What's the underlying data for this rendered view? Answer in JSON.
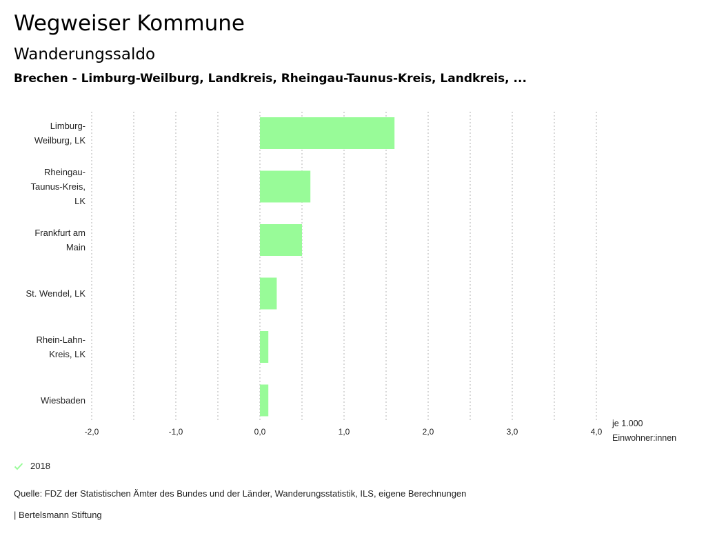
{
  "header": {
    "title": "Wegweiser Kommune",
    "subtitle": "Wanderungssaldo",
    "selection": "Brechen - Limburg-Weilburg, Landkreis, Rheingau-Taunus-Kreis, Landkreis, ..."
  },
  "colors": {
    "bar": "#98fb98",
    "check": "#98fb98",
    "grid": "#b0b0b0"
  },
  "chart_data": {
    "type": "bar",
    "orientation": "horizontal",
    "categories": [
      [
        "Limburg-",
        "Weilburg, LK"
      ],
      [
        "Rheingau-",
        "Taunus-Kreis,",
        "LK"
      ],
      [
        "Frankfurt am",
        "Main"
      ],
      [
        "St. Wendel, LK"
      ],
      [
        "Rhein-Lahn-",
        "Kreis, LK"
      ],
      [
        "Wiesbaden"
      ]
    ],
    "series": [
      {
        "name": "2018",
        "values": [
          1.6,
          0.6,
          0.5,
          0.2,
          0.1,
          0.1
        ]
      }
    ],
    "xlim": [
      -2.0,
      4.0
    ],
    "xticks": [
      -2.0,
      -1.0,
      0.0,
      1.0,
      2.0,
      3.0,
      4.0
    ],
    "xtick_labels": [
      "-2,0",
      "-1,0",
      "0,0",
      "1,0",
      "2,0",
      "3,0",
      "4,0"
    ],
    "xlabel": [
      "je 1.000",
      "Einwohner:innen"
    ],
    "grid": "dotted vertical"
  },
  "legend": {
    "label": "2018"
  },
  "footer": {
    "source": "Quelle: FDZ der Statistischen Ämter des Bundes und der Länder, Wanderungsstatistik, ILS, eigene Berechnungen",
    "brand": "| Bertelsmann Stiftung"
  }
}
